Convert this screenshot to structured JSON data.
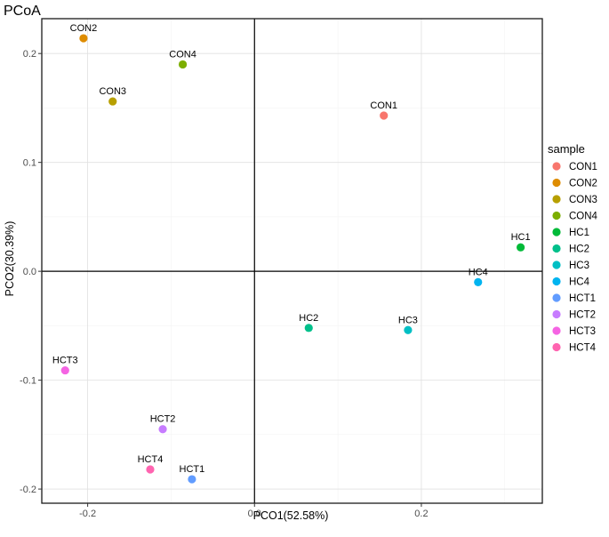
{
  "chart_data": {
    "type": "scatter",
    "title": "PCoA",
    "xlabel": "PCO1(52.58%)",
    "ylabel": "PCO2(30.39%)",
    "xlim": [
      -0.255,
      0.345
    ],
    "ylim": [
      -0.213,
      0.232
    ],
    "xticks": [
      -0.2,
      0.0,
      0.2
    ],
    "xtick_labels": [
      "-0.2",
      "0.0",
      "0.2"
    ],
    "yticks": [
      -0.2,
      -0.1,
      0.0,
      0.1,
      0.2
    ],
    "ytick_labels": [
      "-0.2",
      "-0.1",
      "0.0",
      "0.1",
      "0.2"
    ],
    "reference_lines": {
      "x": 0,
      "y": 0
    },
    "grid": true,
    "legend_title": "sample",
    "legend_position": "right",
    "points": [
      {
        "name": "CON1",
        "x": 0.155,
        "y": 0.143,
        "color": "#F8766D"
      },
      {
        "name": "CON2",
        "x": -0.205,
        "y": 0.214,
        "color": "#DE8C00"
      },
      {
        "name": "CON3",
        "x": -0.17,
        "y": 0.156,
        "color": "#B79F00"
      },
      {
        "name": "CON4",
        "x": -0.086,
        "y": 0.19,
        "color": "#7CAE00"
      },
      {
        "name": "HC1",
        "x": 0.319,
        "y": 0.022,
        "color": "#00BA38"
      },
      {
        "name": "HC2",
        "x": 0.065,
        "y": -0.052,
        "color": "#00C08B"
      },
      {
        "name": "HC3",
        "x": 0.184,
        "y": -0.054,
        "color": "#00BFC4"
      },
      {
        "name": "HC4",
        "x": 0.268,
        "y": -0.01,
        "color": "#00B4F0"
      },
      {
        "name": "HCT1",
        "x": -0.075,
        "y": -0.191,
        "color": "#619CFF"
      },
      {
        "name": "HCT2",
        "x": -0.11,
        "y": -0.145,
        "color": "#C77CFF"
      },
      {
        "name": "HCT3",
        "x": -0.227,
        "y": -0.091,
        "color": "#F564E3"
      },
      {
        "name": "HCT4",
        "x": -0.125,
        "y": -0.182,
        "color": "#FF64B0"
      }
    ]
  }
}
